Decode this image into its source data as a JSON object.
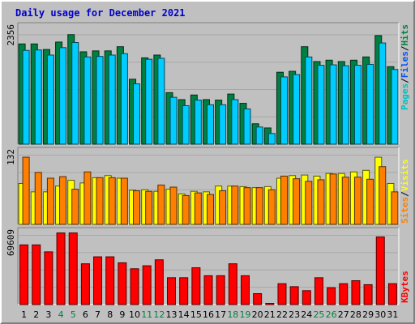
{
  "title": "Daily usage for December 2021",
  "colors": {
    "background": "#c0c0c0",
    "hits": "#008040",
    "files": "#00ccff",
    "pages": "#00c0c0",
    "visits": "#ffff00",
    "sites": "#ff8000",
    "kbytes": "#ff0000",
    "title": "#0000cc",
    "weekend_label": "#008040"
  },
  "legend": {
    "hits": "Hits",
    "files": "Files",
    "pages": "Pages",
    "visits": "Visits",
    "sites": "Sites",
    "kbytes": "KBytes",
    "sep": "/"
  },
  "chart_data": {
    "type": "bar",
    "categories": [
      "1",
      "2",
      "3",
      "4",
      "5",
      "6",
      "7",
      "8",
      "9",
      "10",
      "11",
      "12",
      "13",
      "14",
      "15",
      "16",
      "17",
      "18",
      "19",
      "20",
      "21",
      "22",
      "23",
      "24",
      "25",
      "26",
      "27",
      "28",
      "29",
      "30",
      "31"
    ],
    "weekend_days": [
      "4",
      "5",
      "11",
      "12",
      "18",
      "19",
      "25",
      "26"
    ],
    "panels": [
      {
        "id": "hits_files",
        "ymax_label": "2356",
        "ylim": [
          0,
          2356
        ],
        "series": [
          {
            "name": "Hits",
            "values": [
              2160,
              2160,
              2040,
              2200,
              2360,
              1990,
              2010,
              2010,
              2100,
              1400,
              1860,
              1920,
              1110,
              960,
              1060,
              960,
              950,
              1080,
              880,
              440,
              350,
              1550,
              1570,
              2100,
              1780,
              1810,
              1780,
              1810,
              1880,
              2340,
              1670
            ]
          },
          {
            "name": "Files",
            "values": [
              2020,
              2030,
              1920,
              2080,
              2190,
              1880,
              1890,
              1920,
              1950,
              1300,
              1830,
              1850,
              1010,
              830,
              950,
              850,
              850,
              960,
              760,
              370,
              230,
              1450,
              1500,
              1880,
              1700,
              1710,
              1690,
              1700,
              1720,
              2180,
              1610
            ]
          },
          {
            "name": "Pages",
            "values": [
              0,
              0,
              0,
              0,
              0,
              0,
              0,
              0,
              0,
              0,
              0,
              0,
              0,
              0,
              0,
              0,
              0,
              0,
              0,
              0,
              0,
              0,
              0,
              0,
              0,
              0,
              0,
              0,
              0,
              0,
              0
            ]
          }
        ]
      },
      {
        "id": "visits_sites",
        "ymax_label": "132",
        "ylim": [
          0,
          132
        ],
        "series": [
          {
            "name": "Visits",
            "values": [
              78,
              62,
              62,
              73,
              84,
              79,
              89,
              93,
              88,
              65,
              66,
              63,
              67,
              58,
              63,
              62,
              73,
              73,
              72,
              70,
              72,
              88,
              93,
              94,
              92,
              97,
              97,
              100,
              103,
              128,
              78
            ]
          },
          {
            "name": "Sites",
            "values": [
              128,
              99,
              88,
              91,
              67,
              100,
              89,
              89,
              88,
              64,
              63,
              75,
              71,
              55,
              60,
              57,
              64,
              73,
              70,
              70,
              66,
              92,
              87,
              82,
              85,
              96,
              90,
              90,
              86,
              110,
              62
            ]
          }
        ]
      },
      {
        "id": "kbytes",
        "ymax_label": "69609",
        "ylim": [
          0,
          69609
        ],
        "series": [
          {
            "name": "KBytes",
            "values": [
              60000,
              60000,
              53000,
              72000,
              72000,
              41000,
              48000,
              48000,
              42000,
              36000,
              39000,
              45000,
              27000,
              27000,
              37000,
              29000,
              29000,
              41000,
              29000,
              11000,
              1200,
              21000,
              18000,
              14000,
              27000,
              17000,
              21000,
              24000,
              20000,
              68000,
              21000
            ]
          }
        ]
      }
    ]
  }
}
